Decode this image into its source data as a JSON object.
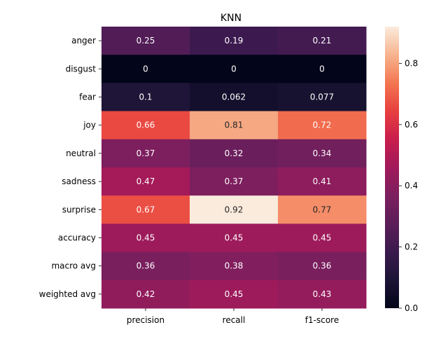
{
  "chart_data": {
    "type": "heatmap",
    "title": "KNN",
    "xlabel": "",
    "ylabel": "",
    "columns": [
      "precision",
      "recall",
      "f1-score"
    ],
    "rows": [
      "anger",
      "disgust",
      "fear",
      "joy",
      "neutral",
      "sadness",
      "surprise",
      "accuracy",
      "macro avg",
      "weighted avg"
    ],
    "values": [
      [
        0.25,
        0.19,
        0.21
      ],
      [
        0,
        0,
        0
      ],
      [
        0.1,
        0.062,
        0.077
      ],
      [
        0.66,
        0.81,
        0.72
      ],
      [
        0.37,
        0.32,
        0.34
      ],
      [
        0.47,
        0.37,
        0.41
      ],
      [
        0.67,
        0.92,
        0.77
      ],
      [
        0.45,
        0.45,
        0.45
      ],
      [
        0.36,
        0.38,
        0.36
      ],
      [
        0.42,
        0.45,
        0.43
      ]
    ],
    "labels": [
      [
        "0.25",
        "0.19",
        "0.21"
      ],
      [
        "0",
        "0",
        "0"
      ],
      [
        "0.1",
        "0.062",
        "0.077"
      ],
      [
        "0.66",
        "0.81",
        "0.72"
      ],
      [
        "0.37",
        "0.32",
        "0.34"
      ],
      [
        "0.47",
        "0.37",
        "0.41"
      ],
      [
        "0.67",
        "0.92",
        "0.77"
      ],
      [
        "0.45",
        "0.45",
        "0.45"
      ],
      [
        "0.36",
        "0.38",
        "0.36"
      ],
      [
        "0.42",
        "0.45",
        "0.43"
      ]
    ],
    "colorbar": {
      "min": 0,
      "max": 0.92,
      "ticks": [
        0.0,
        0.2,
        0.4,
        0.6,
        0.8
      ],
      "tick_labels": [
        "0.0",
        "0.2",
        "0.4",
        "0.6",
        "0.8"
      ],
      "colormap": "rocket"
    },
    "grid": false,
    "legend": "right colorbar"
  }
}
